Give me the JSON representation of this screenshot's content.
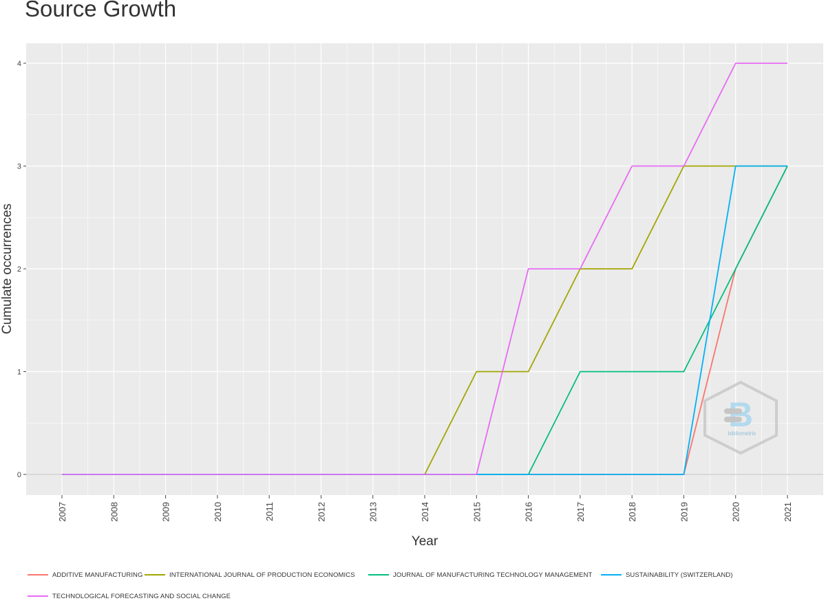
{
  "title": "Source Growth",
  "chart_data": {
    "type": "line",
    "title": "Source Growth",
    "xlabel": "Year",
    "ylabel": "Cumulate occurrences",
    "x": [
      2007,
      2008,
      2009,
      2010,
      2011,
      2012,
      2013,
      2014,
      2015,
      2016,
      2017,
      2018,
      2019,
      2020,
      2021
    ],
    "ylim": [
      -0.2,
      4.2
    ],
    "yticks": [
      0,
      1,
      2,
      3,
      4
    ],
    "grid": true,
    "legend_position": "bottom",
    "series": [
      {
        "name": "ADDITIVE MANUFACTURING",
        "color": "#F8766D",
        "values": [
          0,
          0,
          0,
          0,
          0,
          0,
          0,
          0,
          0,
          0,
          0,
          0,
          0,
          2,
          3
        ]
      },
      {
        "name": "INTERNATIONAL JOURNAL OF PRODUCTION ECONOMICS",
        "color": "#A3A500",
        "values": [
          0,
          0,
          0,
          0,
          0,
          0,
          0,
          0,
          1,
          1,
          2,
          2,
          3,
          3,
          3
        ]
      },
      {
        "name": "JOURNAL OF MANUFACTURING TECHNOLOGY MANAGEMENT",
        "color": "#00BF7D",
        "values": [
          0,
          0,
          0,
          0,
          0,
          0,
          0,
          0,
          0,
          0,
          1,
          1,
          1,
          2,
          3
        ]
      },
      {
        "name": "SUSTAINABILITY (SWITZERLAND)",
        "color": "#00B0F6",
        "values": [
          0,
          0,
          0,
          0,
          0,
          0,
          0,
          0,
          0,
          0,
          0,
          0,
          0,
          3,
          3
        ]
      },
      {
        "name": "TECHNOLOGICAL FORECASTING AND SOCIAL CHANGE",
        "color": "#E76BF3",
        "values": [
          0,
          0,
          0,
          0,
          0,
          0,
          0,
          0,
          0,
          2,
          2,
          3,
          3,
          4,
          4
        ]
      }
    ]
  },
  "watermark": {
    "text": "bibliometrix",
    "icon": "bibliometrix-logo-icon"
  }
}
